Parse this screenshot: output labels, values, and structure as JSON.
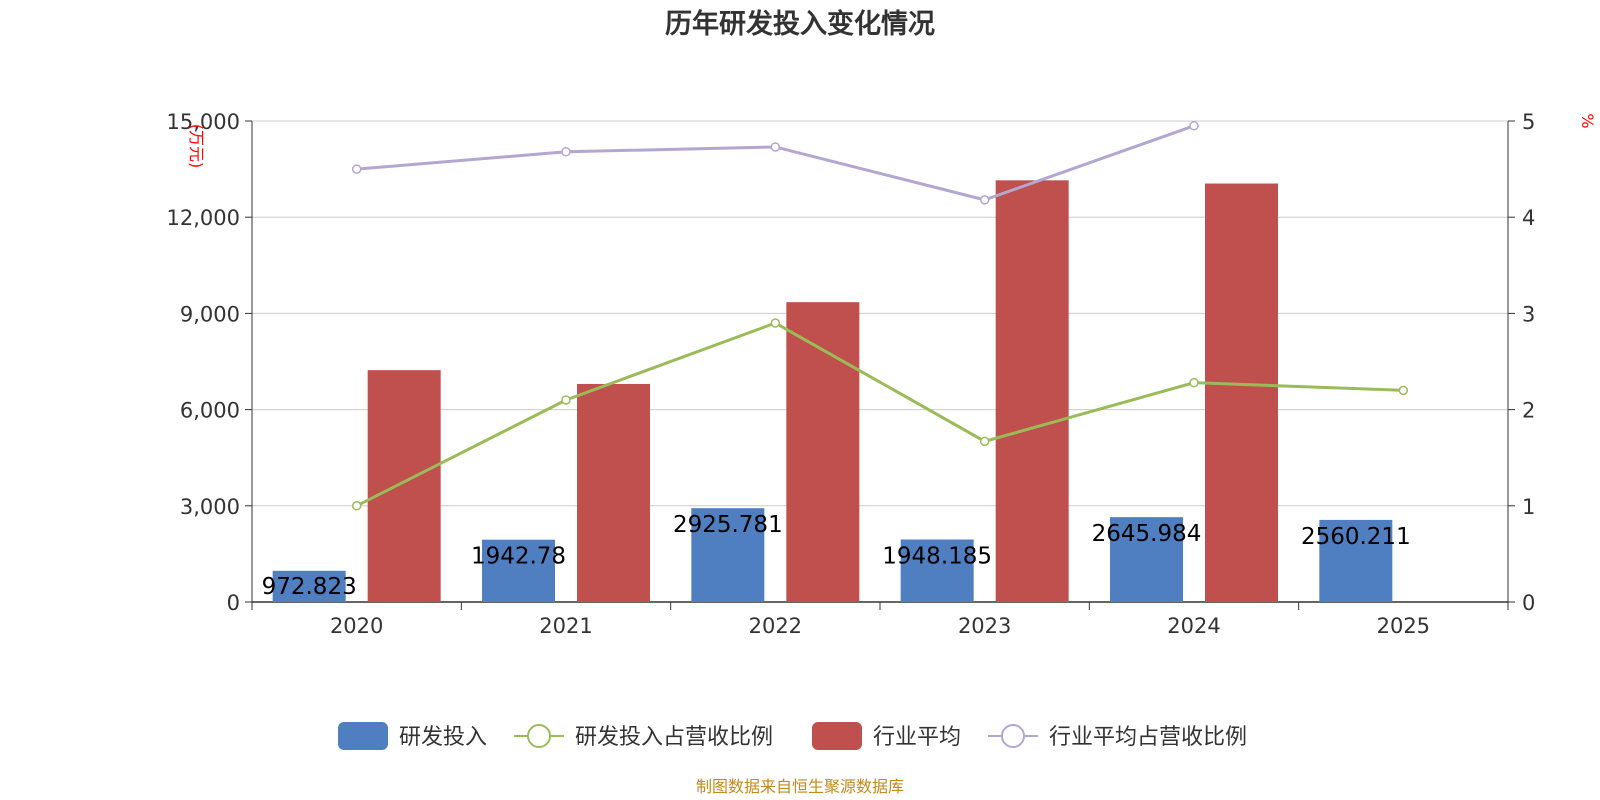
{
  "chart_data": {
    "type": "bar",
    "title": "历年研发投入变化情况",
    "categories": [
      "2020",
      "2021",
      "2022",
      "2023",
      "2024",
      "2025"
    ],
    "y_left": {
      "unit": "(万元)",
      "range": [
        0,
        15000
      ],
      "ticks": [
        "0",
        "3,000",
        "6,000",
        "9,000",
        "12,000",
        "15,000"
      ]
    },
    "y_right": {
      "unit": "%",
      "range": [
        0,
        5
      ],
      "ticks": [
        "0",
        "1",
        "2",
        "3",
        "4",
        "5"
      ]
    },
    "grid": true,
    "legend_position": "bottom",
    "series": [
      {
        "name": "研发投入",
        "kind": "bar",
        "axis": "left",
        "color": "#4f7fc0",
        "values": [
          972.823,
          1942.78,
          2925.781,
          1948.185,
          2645.984,
          2560.211
        ],
        "labels": [
          "972.823",
          "1942.78",
          "2925.781",
          "1948.185",
          "2645.984",
          "2560.211"
        ]
      },
      {
        "name": "研发投入占营收比例",
        "kind": "line",
        "axis": "right",
        "color": "#9bbb59",
        "values": [
          1.0,
          2.1,
          2.9,
          1.67,
          2.28,
          2.2
        ]
      },
      {
        "name": "行业平均",
        "kind": "bar",
        "axis": "left",
        "color": "#c0504d",
        "values": [
          7230,
          6800,
          9350,
          13150,
          13050,
          null
        ]
      },
      {
        "name": "行业平均占营收比例",
        "kind": "line",
        "axis": "right",
        "color": "#b3a6d1",
        "values": [
          4.5,
          4.68,
          4.73,
          4.18,
          4.95,
          null
        ]
      }
    ]
  },
  "footer": {
    "source": "制图数据来自恒生聚源数据库"
  }
}
